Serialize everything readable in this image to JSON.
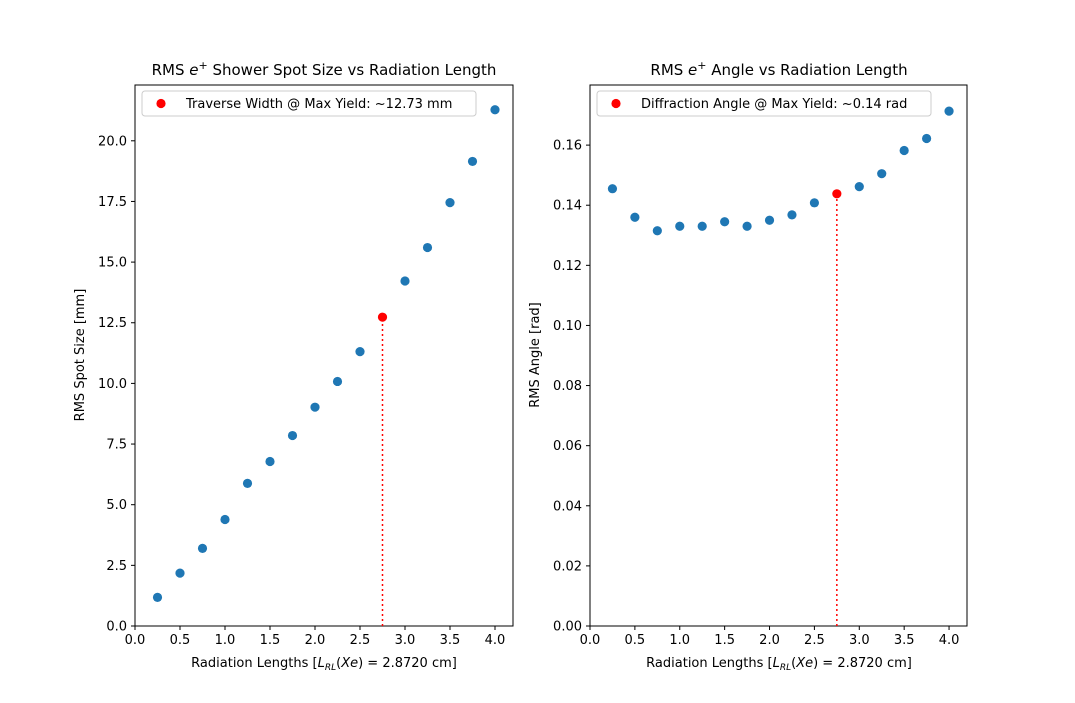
{
  "chart_data": [
    {
      "type": "scatter",
      "title": "RMS e⁺ Shower Spot Size vs Radiation Length",
      "xlabel": "Radiation Lengths [L_RL(Xe) = 2.8720 cm]",
      "ylabel": "RMS Spot Size [mm]",
      "xlim": [
        0.0,
        4.2
      ],
      "ylim": [
        0.0,
        22.3
      ],
      "xticks": [
        "0.0",
        "0.5",
        "1.0",
        "1.5",
        "2.0",
        "2.5",
        "3.0",
        "3.5",
        "4.0"
      ],
      "yticks": [
        "0.0",
        "2.5",
        "5.0",
        "7.5",
        "10.0",
        "12.5",
        "15.0",
        "17.5",
        "20.0"
      ],
      "grid": false,
      "legend_position": "top-left",
      "series": [
        {
          "color": "#1f77b4",
          "x": [
            0.25,
            0.5,
            0.75,
            1.0,
            1.25,
            1.5,
            1.75,
            2.0,
            2.25,
            2.5,
            3.0,
            3.25,
            3.5,
            3.75,
            4.0
          ],
          "y": [
            1.18,
            2.18,
            3.2,
            4.39,
            5.88,
            6.78,
            7.85,
            9.02,
            10.08,
            11.31,
            14.22,
            15.6,
            17.45,
            19.15,
            21.28
          ]
        },
        {
          "name": "Traverse Width @ Max Yield: ~12.73 mm",
          "color": "#ff0000",
          "x": [
            2.75
          ],
          "y": [
            12.73
          ]
        }
      ],
      "vline": {
        "x": 2.75,
        "y": 12.73,
        "color": "#ff0000",
        "style": "dotted"
      }
    },
    {
      "type": "scatter",
      "title": "RMS e⁺ Angle vs Radiation Length",
      "xlabel": "Radiation Lengths [L_RL(Xe) = 2.8720 cm]",
      "ylabel": "RMS Angle [rad]",
      "xlim": [
        0.0,
        4.2
      ],
      "ylim": [
        0.0,
        0.18
      ],
      "xticks": [
        "0.0",
        "0.5",
        "1.0",
        "1.5",
        "2.0",
        "2.5",
        "3.0",
        "3.5",
        "4.0"
      ],
      "yticks": [
        "0.00",
        "0.02",
        "0.04",
        "0.06",
        "0.08",
        "0.10",
        "0.12",
        "0.14",
        "0.16"
      ],
      "grid": false,
      "legend_position": "top-left",
      "series": [
        {
          "color": "#1f77b4",
          "x": [
            0.25,
            0.5,
            0.75,
            1.0,
            1.25,
            1.5,
            1.75,
            2.0,
            2.25,
            2.5,
            3.0,
            3.25,
            3.5,
            3.75,
            4.0
          ],
          "y": [
            0.1455,
            0.136,
            0.1315,
            0.133,
            0.133,
            0.1345,
            0.133,
            0.135,
            0.1368,
            0.1408,
            0.1462,
            0.1505,
            0.1582,
            0.1622,
            0.1713
          ]
        },
        {
          "name": "Diffraction Angle @ Max Yield: ~0.14 rad",
          "color": "#ff0000",
          "x": [
            2.75
          ],
          "y": [
            0.1438
          ]
        }
      ],
      "vline": {
        "x": 2.75,
        "y": 0.1438,
        "color": "#ff0000",
        "style": "dotted"
      }
    }
  ]
}
